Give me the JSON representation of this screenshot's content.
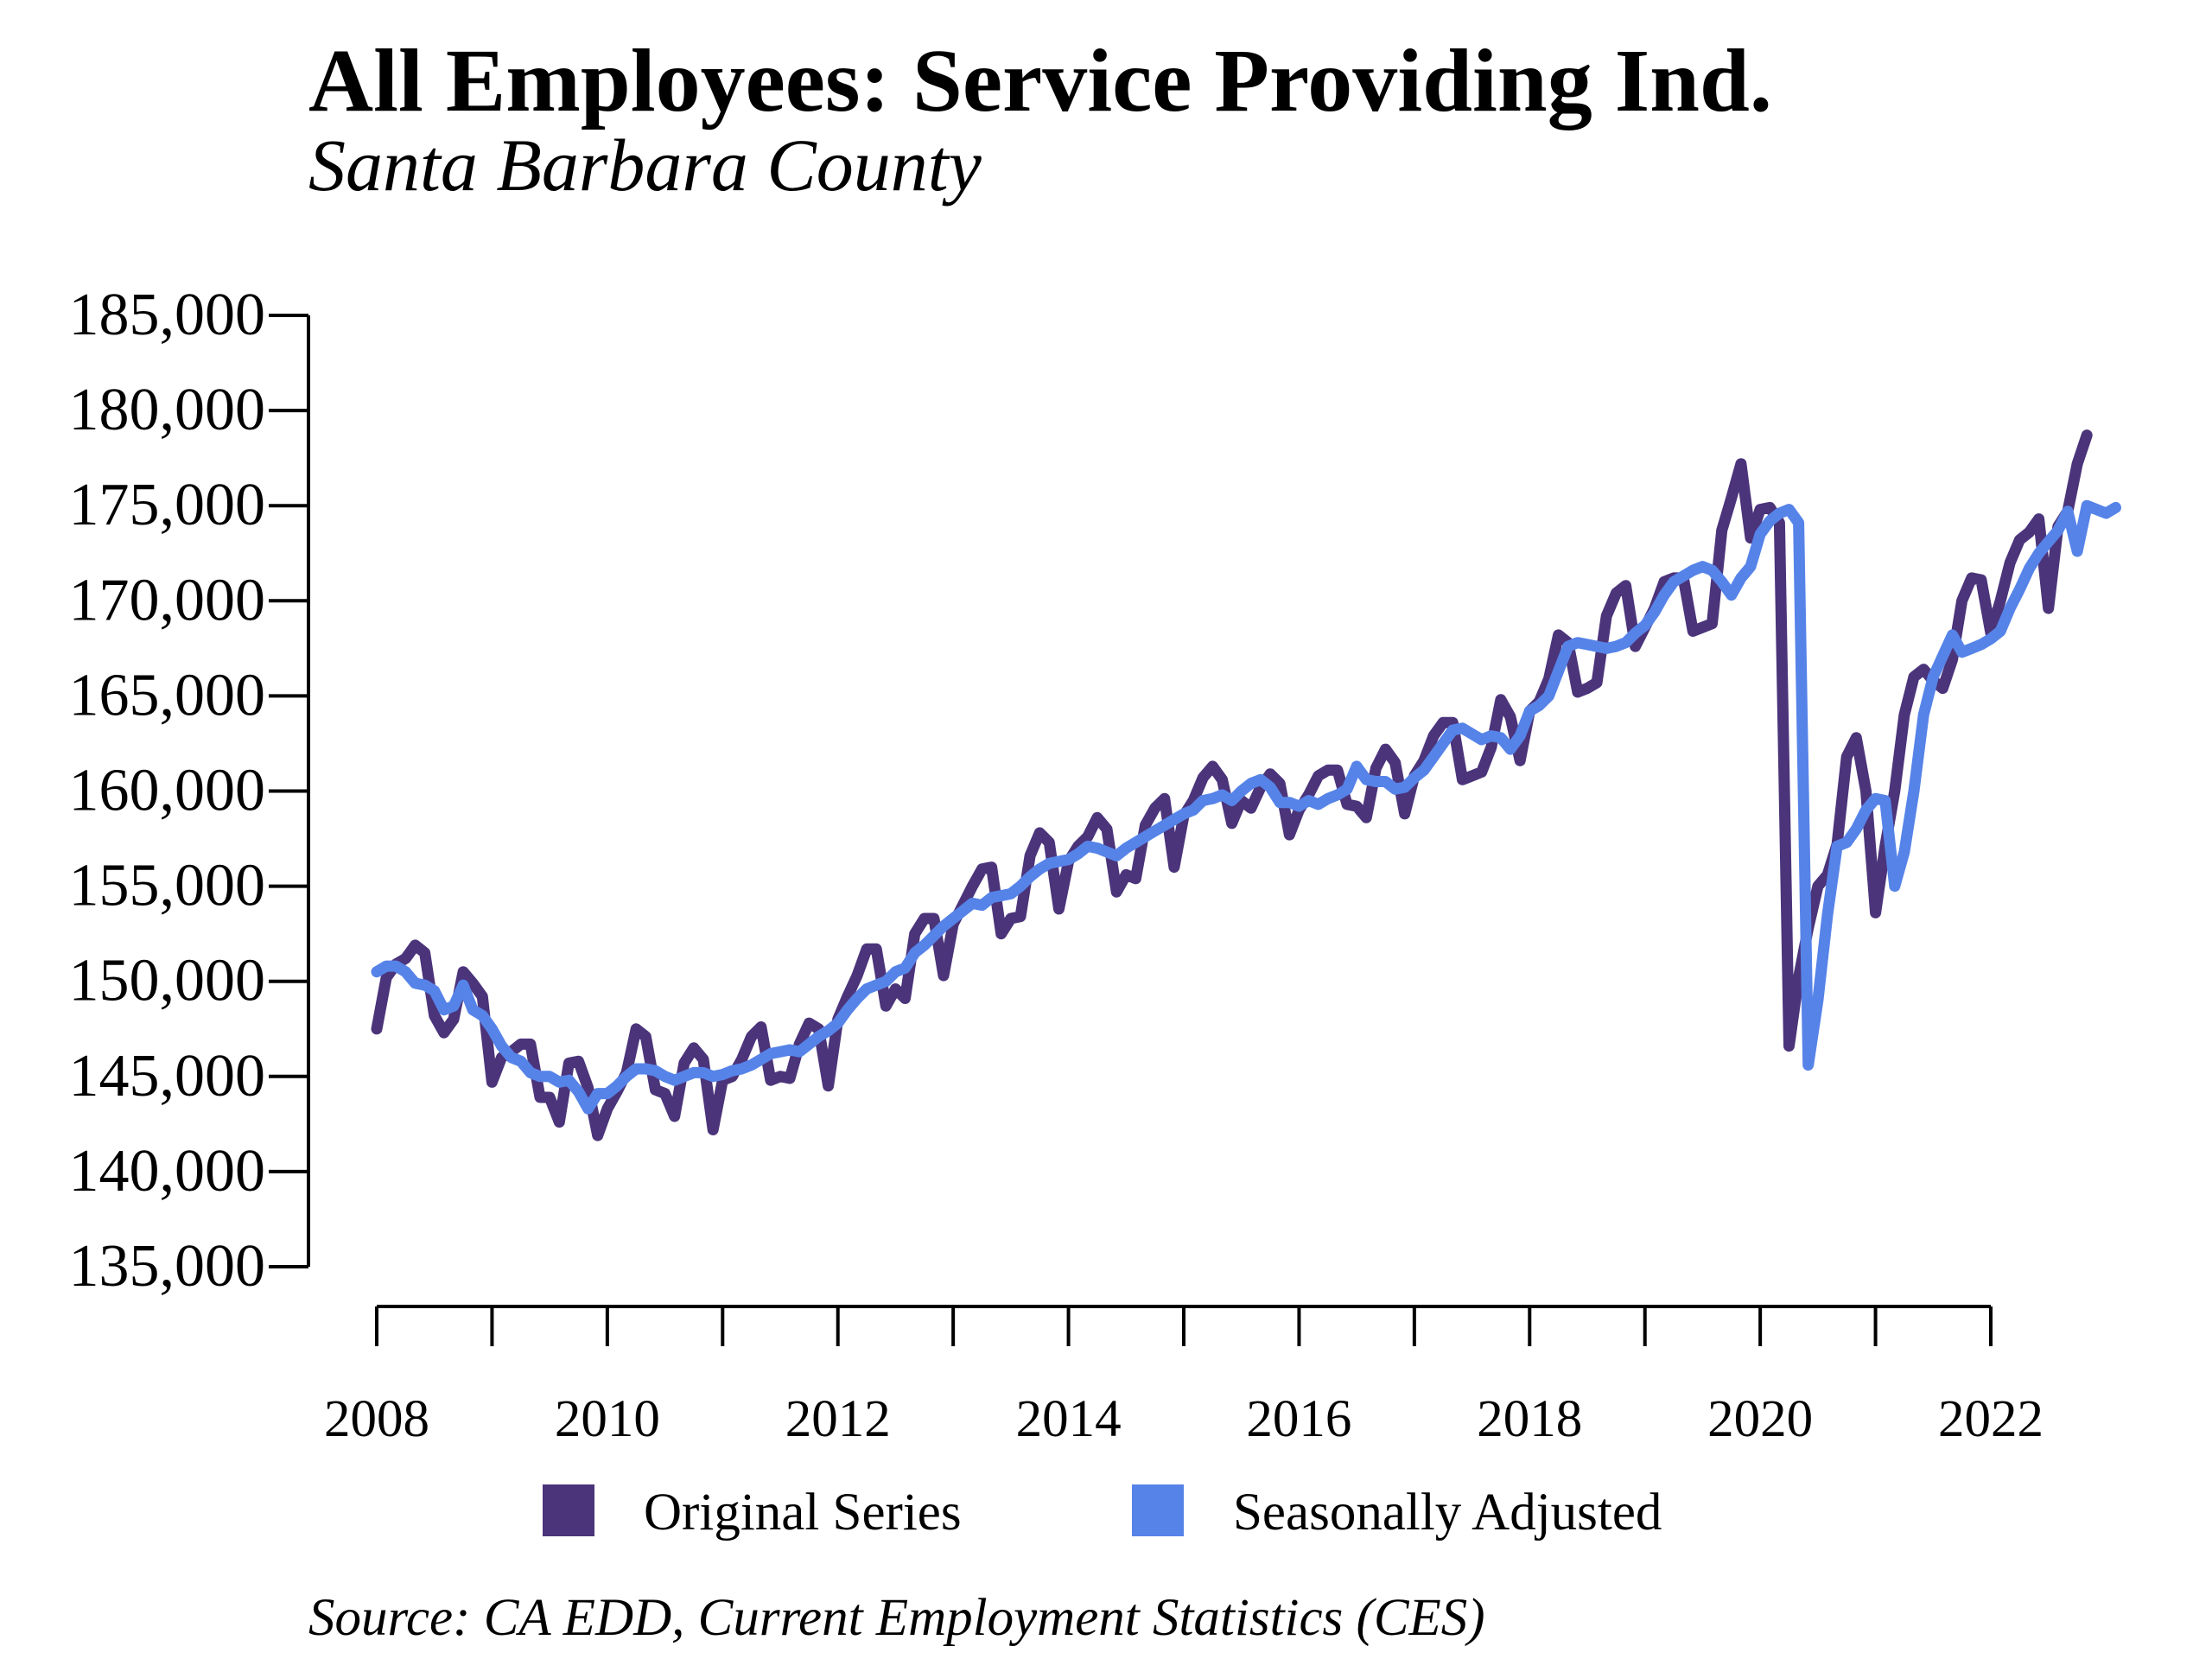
{
  "title": "All Employees: Service Providing Ind.",
  "subtitle": "Santa Barbara County",
  "source": "Source: CA EDD, Current Employment Statistics (CES)",
  "colors": {
    "original": "#4b347a",
    "seasonal": "#5683e8"
  },
  "chart_data": {
    "type": "line",
    "x_start": 2008.0,
    "x_step_months": 1,
    "xlim": [
      2008,
      2022
    ],
    "x_ticks": [
      2008,
      2009,
      2010,
      2011,
      2012,
      2013,
      2014,
      2015,
      2016,
      2017,
      2018,
      2019,
      2020,
      2021,
      2022
    ],
    "x_tick_labels": [
      "2008",
      "2010",
      "2012",
      "2014",
      "2016",
      "2018",
      "2020",
      "2022"
    ],
    "x_tick_label_years": [
      2008,
      2010,
      2012,
      2014,
      2016,
      2018,
      2020,
      2022
    ],
    "ylim": [
      135000,
      185000
    ],
    "y_ticks": [
      135000,
      140000,
      145000,
      150000,
      155000,
      160000,
      165000,
      170000,
      175000,
      180000,
      185000
    ],
    "y_tick_labels": [
      "135,000",
      "140,000",
      "145,000",
      "150,000",
      "155,000",
      "160,000",
      "165,000",
      "170,000",
      "175,000",
      "180,000",
      "185,000"
    ],
    "legend": {
      "position": "bottom",
      "entries": [
        "Original Series",
        "Seasonally Adjusted"
      ]
    },
    "grid": false,
    "series": [
      {
        "name": "Original Series",
        "values": [
          147500,
          150200,
          150900,
          151200,
          151900,
          151500,
          148200,
          147300,
          148000,
          150500,
          149900,
          149200,
          144700,
          146000,
          146300,
          146700,
          146700,
          143900,
          143900,
          142600,
          145700,
          145800,
          144400,
          141900,
          143300,
          144200,
          145200,
          147500,
          147100,
          144300,
          144100,
          142900,
          145700,
          146500,
          145900,
          142200,
          144800,
          145000,
          145900,
          147100,
          147600,
          144800,
          145000,
          144900,
          146700,
          147800,
          147500,
          144500,
          148000,
          149200,
          150300,
          151700,
          151700,
          148700,
          149600,
          149100,
          152500,
          153300,
          153300,
          150300,
          153000,
          154000,
          155000,
          155900,
          156000,
          152500,
          153300,
          153400,
          156600,
          157800,
          157300,
          153800,
          156300,
          157100,
          157600,
          158600,
          158000,
          154700,
          155600,
          155400,
          158200,
          159100,
          159600,
          156000,
          158700,
          159500,
          160700,
          161300,
          160600,
          158300,
          159500,
          159100,
          160200,
          160900,
          160400,
          157700,
          159000,
          159800,
          160800,
          161100,
          161100,
          159300,
          159200,
          158600,
          161200,
          162200,
          161500,
          158800,
          160800,
          161600,
          162900,
          163600,
          163600,
          160600,
          160800,
          161000,
          162300,
          164800,
          163900,
          161600,
          164200,
          164700,
          165900,
          168200,
          167800,
          165200,
          165400,
          165700,
          169200,
          170400,
          170800,
          167600,
          168600,
          169600,
          171000,
          171200,
          171200,
          168400,
          168600,
          168800,
          173700,
          175400,
          177200,
          173300,
          174800,
          174900,
          174100,
          146600,
          150200,
          152800,
          155000,
          155600,
          157200,
          161800,
          162800,
          160000,
          153600,
          157100,
          160000,
          164000,
          166000,
          166400,
          165800,
          165400,
          166900,
          170000,
          171200,
          171100,
          168300,
          170000,
          172000,
          173200,
          173600,
          174300,
          169600,
          173900,
          174700,
          177200,
          178700
        ]
      },
      {
        "name": "Seasonally Adjusted",
        "values": [
          150500,
          150800,
          150800,
          150500,
          149900,
          149800,
          149500,
          148500,
          148700,
          149800,
          148500,
          148200,
          147500,
          146600,
          146000,
          145800,
          145200,
          145000,
          145000,
          144700,
          144800,
          144200,
          143300,
          144100,
          144100,
          144500,
          145000,
          145400,
          145400,
          145300,
          145000,
          144800,
          145000,
          145200,
          145200,
          145000,
          145100,
          145300,
          145400,
          145600,
          145900,
          146200,
          146300,
          146400,
          146300,
          146700,
          147100,
          147400,
          147800,
          148500,
          149100,
          149600,
          149800,
          150000,
          150500,
          150700,
          151500,
          151900,
          152400,
          152900,
          153300,
          153700,
          154100,
          154000,
          154400,
          154500,
          154600,
          155000,
          155500,
          155900,
          156200,
          156300,
          156400,
          156700,
          157100,
          157000,
          156800,
          156600,
          157000,
          157300,
          157600,
          157900,
          158200,
          158500,
          158800,
          159000,
          159500,
          159600,
          159800,
          159500,
          160000,
          160400,
          160600,
          160200,
          159400,
          159400,
          159200,
          159500,
          159300,
          159600,
          159800,
          160100,
          161300,
          160600,
          160500,
          160500,
          160100,
          160200,
          160700,
          161100,
          161800,
          162500,
          163200,
          163300,
          163000,
          162700,
          162900,
          162800,
          162200,
          162900,
          164200,
          164500,
          165000,
          166300,
          167600,
          167800,
          167700,
          167600,
          167500,
          167600,
          167800,
          168300,
          168700,
          169400,
          170300,
          171000,
          171300,
          171600,
          171800,
          171600,
          171000,
          170300,
          171200,
          171800,
          173500,
          174200,
          174600,
          174800,
          174100,
          145600,
          149000,
          153500,
          157100,
          157300,
          158000,
          159000,
          159600,
          159500,
          155000,
          156800,
          160000,
          164000,
          166000,
          167100,
          168200,
          167300,
          167500,
          167700,
          168000,
          168400,
          169600,
          170600,
          171700,
          172500,
          173100,
          173700,
          174700,
          172600,
          175000,
          174800,
          174600,
          174900
        ]
      }
    ]
  }
}
